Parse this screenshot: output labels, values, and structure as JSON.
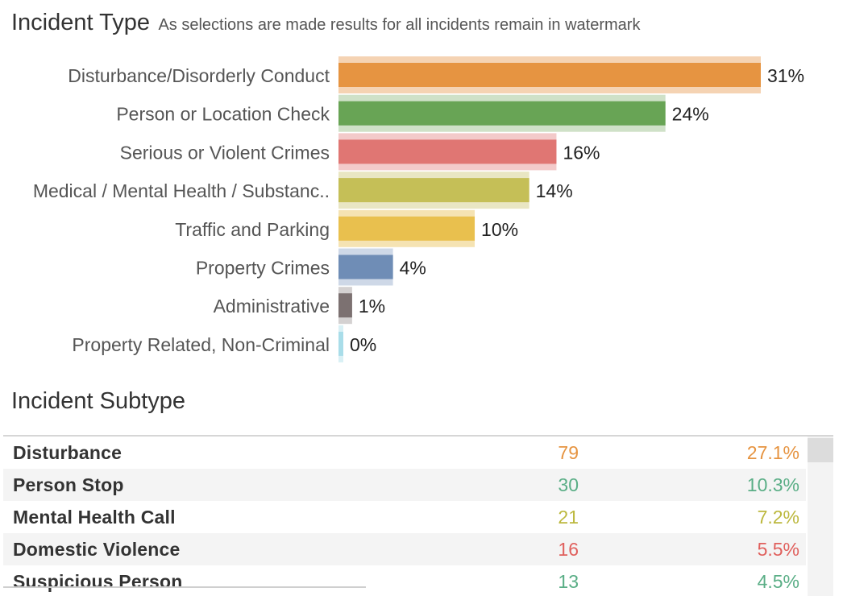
{
  "header": {
    "title": "Incident Type",
    "subtitle": "As selections are made results for all incidents remain in watermark"
  },
  "chart_data": {
    "type": "bar",
    "orientation": "horizontal",
    "categories": [
      "Disturbance/Disorderly Conduct",
      "Person or Location Check",
      "Serious or Violent Crimes",
      "Medical / Mental Health / Substanc..",
      "Traffic and Parking",
      "Property Crimes",
      "Administrative",
      "Property Related, Non-Criminal"
    ],
    "values": [
      31,
      24,
      16,
      14,
      10,
      4,
      1,
      0.3
    ],
    "labels": [
      "31%",
      "24%",
      "16%",
      "14%",
      "10%",
      "4%",
      "1%",
      "0%"
    ],
    "colors": [
      "#e69441",
      "#68a455",
      "#e07673",
      "#c5bf57",
      "#e9c04e",
      "#6f8db6",
      "#7c7171",
      "#a9dde9"
    ],
    "watermark_colors": [
      "#f5d3b3",
      "#cfe1c8",
      "#f3caca",
      "#e9e6c3",
      "#f5e3b3",
      "#ced8e7",
      "#d4d1d1",
      "#d9f0f5"
    ],
    "xlim": [
      0,
      31
    ]
  },
  "subtype": {
    "title": "Incident Subtype",
    "rows": [
      {
        "name": "Disturbance",
        "count": "79",
        "pct": "27.1%",
        "color": "#e69441"
      },
      {
        "name": "Person Stop",
        "count": "30",
        "pct": "10.3%",
        "color": "#5aae86"
      },
      {
        "name": "Mental Health Call",
        "count": "21",
        "pct": "7.2%",
        "color": "#bcb83e"
      },
      {
        "name": "Domestic Violence",
        "count": "16",
        "pct": "5.5%",
        "color": "#e0605d"
      },
      {
        "name": "Suspicious Person",
        "count": "13",
        "pct": "4.5%",
        "color": "#5aae86"
      }
    ]
  }
}
